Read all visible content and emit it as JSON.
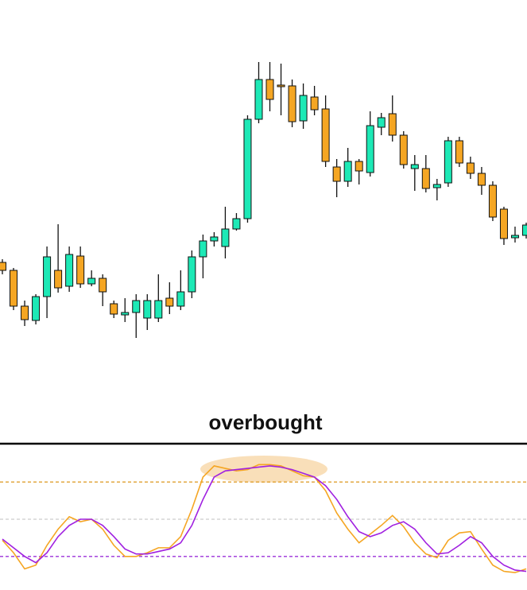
{
  "chart_data": [
    {
      "type": "candlestick",
      "up_color": "#1de9b6",
      "down_color": "#f5a623",
      "ylim": [
        0,
        560
      ],
      "open": [
        230,
        220,
        175,
        157,
        187,
        220,
        200,
        238,
        203,
        210,
        178,
        164,
        167,
        160,
        160,
        185,
        175,
        193,
        237,
        257,
        250,
        272,
        285,
        410,
        460,
        453,
        452,
        408,
        438,
        423,
        350,
        332,
        357,
        343,
        400,
        417,
        390,
        348,
        348,
        324,
        330,
        383,
        355,
        342,
        327,
        297,
        261,
        264
      ],
      "close": [
        220,
        175,
        158,
        187,
        237,
        198,
        240,
        203,
        210,
        193,
        165,
        167,
        182,
        182,
        182,
        175,
        193,
        237,
        257,
        262,
        272,
        285,
        410,
        460,
        435,
        451,
        407,
        440,
        422,
        357,
        332,
        357,
        345,
        402,
        412,
        390,
        353,
        353,
        323,
        328,
        383,
        355,
        342,
        327,
        287,
        260,
        264,
        277
      ],
      "high": [
        234,
        223,
        182,
        190,
        250,
        278,
        250,
        250,
        220,
        215,
        182,
        185,
        190,
        190,
        215,
        205,
        220,
        245,
        265,
        268,
        300,
        292,
        415,
        482,
        482,
        480,
        460,
        455,
        452,
        440,
        360,
        374,
        360,
        420,
        418,
        440,
        395,
        365,
        365,
        335,
        388,
        388,
        363,
        350,
        332,
        300,
        275,
        280
      ],
      "low": [
        215,
        170,
        150,
        152,
        160,
        192,
        193,
        198,
        200,
        175,
        160,
        155,
        135,
        145,
        155,
        165,
        170,
        185,
        210,
        250,
        235,
        270,
        280,
        405,
        420,
        415,
        400,
        398,
        415,
        350,
        312,
        325,
        328,
        338,
        390,
        382,
        348,
        320,
        318,
        308,
        325,
        350,
        335,
        315,
        282,
        252,
        255,
        260
      ]
    },
    {
      "type": "line",
      "annotation": "overbought",
      "ylim": [
        0,
        100
      ],
      "levels": [
        {
          "value": 80,
          "color": "#e0a030"
        },
        {
          "value": 50,
          "color": "#cccccc"
        },
        {
          "value": 20,
          "color": "#9b30d9"
        }
      ],
      "series": [
        {
          "color": "#f5a623",
          "values": [
            33,
            23,
            10,
            13,
            29,
            42,
            52,
            48,
            50,
            42,
            29,
            20,
            20,
            23,
            27,
            27,
            36,
            58,
            84,
            93,
            91,
            89,
            90,
            94,
            94,
            93,
            89,
            85,
            84,
            73,
            55,
            42,
            31,
            38,
            45,
            53,
            44,
            31,
            22,
            19,
            33,
            39,
            40,
            26,
            13,
            8,
            7,
            10
          ]
        },
        {
          "color": "#a020e0",
          "values": [
            34,
            27,
            20,
            15,
            23,
            36,
            45,
            50,
            50,
            45,
            36,
            26,
            22,
            22,
            24,
            26,
            31,
            45,
            66,
            84,
            89,
            90,
            91,
            92,
            93,
            92,
            90,
            87,
            84,
            77,
            66,
            52,
            40,
            36,
            39,
            45,
            48,
            42,
            31,
            22,
            23,
            29,
            36,
            31,
            20,
            13,
            9,
            8
          ]
        }
      ]
    }
  ]
}
